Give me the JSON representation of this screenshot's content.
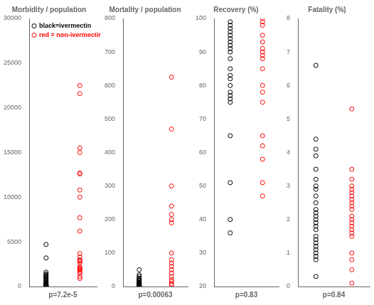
{
  "chart_data": [
    {
      "type": "scatter",
      "title": "Morbidity / population",
      "x_label": "p=7.2e-5",
      "ylim": [
        0,
        30000
      ],
      "yticks": [
        0,
        5000,
        10000,
        15000,
        20000,
        25000,
        30000
      ],
      "grid": false,
      "tick_labels": "y",
      "legend": "upper left",
      "series": [
        {
          "name": "black=ivermectin",
          "color": "black",
          "values": [
            4700,
            3200,
            1600,
            1400,
            1300,
            1200,
            1100,
            1000,
            900,
            800,
            700,
            600,
            500,
            400,
            350,
            300,
            250,
            200,
            150,
            100,
            90,
            80,
            70,
            60,
            50,
            30,
            20,
            10
          ]
        },
        {
          "name": "red = non-ivermectin",
          "color": "red",
          "values": [
            22500,
            21600,
            15500,
            15000,
            12700,
            12600,
            10800,
            10000,
            7700,
            6200,
            3700,
            3300,
            3000,
            2900,
            2800,
            2600,
            2200,
            2100,
            2000,
            1900,
            1800,
            1600,
            1500,
            1100,
            900
          ]
        }
      ]
    },
    {
      "type": "scatter",
      "title": "Mortality / population",
      "x_label": "p=0.00063",
      "ylim": [
        0,
        800
      ],
      "yticks": [
        0,
        100,
        200,
        300,
        400,
        500,
        600,
        700,
        800
      ],
      "grid": false,
      "tick_labels": "y",
      "series": [
        {
          "color": "black",
          "values": [
            50,
            35,
            30,
            25,
            22,
            20,
            18,
            15,
            13,
            11,
            9,
            8,
            7,
            6,
            5,
            4,
            3,
            2,
            1.5,
            1,
            0.5
          ]
        },
        {
          "color": "red",
          "values": [
            625,
            470,
            300,
            240,
            215,
            200,
            190,
            100,
            80,
            70,
            60,
            50,
            40,
            30,
            20,
            15,
            8,
            5
          ]
        }
      ]
    },
    {
      "type": "scatter",
      "title": "Recovery (%)",
      "x_label": "p=0.83",
      "ylim": [
        20,
        100
      ],
      "yticks": [
        20,
        30,
        40,
        50,
        60,
        70,
        80,
        90,
        100
      ],
      "grid": false,
      "tick_labels": "y",
      "series": [
        {
          "color": "black",
          "values": [
            99,
            98,
            97,
            96,
            95,
            94,
            93,
            92,
            91,
            90,
            88,
            85,
            83,
            82,
            80,
            78,
            77,
            76,
            75,
            65,
            51,
            40,
            36
          ]
        },
        {
          "color": "red",
          "values": [
            100,
            99,
            98,
            95,
            93,
            91,
            90,
            89,
            88,
            85,
            80,
            78,
            75,
            65,
            62,
            58,
            51,
            47
          ]
        }
      ]
    },
    {
      "type": "scatter",
      "title": "Fatality (%)",
      "x_label": "p=0.84",
      "ylim": [
        0,
        8
      ],
      "yticks": [
        0,
        1,
        2,
        3,
        4,
        5,
        6,
        7,
        8
      ],
      "grid": false,
      "tick_labels": "y",
      "series": [
        {
          "color": "black",
          "values": [
            6.6,
            4.4,
            4.1,
            3.9,
            3.5,
            3.2,
            3.0,
            2.9,
            2.7,
            2.5,
            2.3,
            2.2,
            2.1,
            2.0,
            1.9,
            1.8,
            1.7,
            1.5,
            1.4,
            1.3,
            1.2,
            1.1,
            1.0,
            0.9,
            0.8,
            0.3
          ]
        },
        {
          "color": "red",
          "values": [
            5.3,
            3.5,
            3.2,
            3.0,
            2.9,
            2.8,
            2.7,
            2.6,
            2.5,
            2.4,
            2.3,
            2.1,
            2.0,
            1.9,
            1.8,
            1.7,
            1.6,
            1.5,
            1.0,
            0.8,
            0.5,
            0.1
          ]
        }
      ]
    }
  ]
}
